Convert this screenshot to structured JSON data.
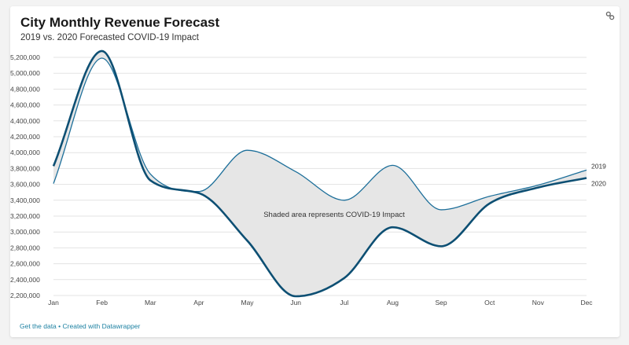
{
  "header": {
    "title": "City Monthly Revenue Forecast",
    "subtitle": "2019 vs. 2020 Forecasted COVID-19 Impact",
    "link_icon": "link-icon"
  },
  "footer": {
    "get_data": "Get the data",
    "separator": "•",
    "created_with": "Created with Datawrapper"
  },
  "colors": {
    "line_2019": "#1d6f9a",
    "line_2020": "#0d4f73",
    "shade": "#e6e6e6",
    "grid": "#e3e3e3"
  },
  "chart_data": {
    "type": "line",
    "title": "City Monthly Revenue Forecast",
    "subtitle": "2019 vs. 2020 Forecasted COVID-19 Impact",
    "categories": [
      "Jan",
      "Feb",
      "Mar",
      "Apr",
      "May",
      "Jun",
      "Jul",
      "Aug",
      "Sep",
      "Oct",
      "Nov",
      "Dec"
    ],
    "series": [
      {
        "name": "2019",
        "values": [
          3610000,
          5190000,
          3730000,
          3510000,
          4030000,
          3760000,
          3400000,
          3840000,
          3280000,
          3450000,
          3590000,
          3780000
        ]
      },
      {
        "name": "2020",
        "values": [
          3830000,
          5280000,
          3650000,
          3490000,
          2890000,
          2190000,
          2420000,
          3060000,
          2820000,
          3360000,
          3560000,
          3680000
        ]
      }
    ],
    "ylim": [
      2200000,
      5200000
    ],
    "yticks": [
      2200000,
      2400000,
      2600000,
      2800000,
      3000000,
      3200000,
      3400000,
      3600000,
      3800000,
      4000000,
      4200000,
      4400000,
      4600000,
      4800000,
      5000000,
      5200000
    ],
    "ytick_labels": [
      "2,200,000",
      "2,400,000",
      "2,600,000",
      "2,800,000",
      "3,000,000",
      "3,200,000",
      "3,400,000",
      "3,600,000",
      "3,800,000",
      "4,000,000",
      "4,200,000",
      "4,400,000",
      "4,600,000",
      "4,800,000",
      "5,000,000",
      "5,200,000"
    ],
    "annotation": "Shaded area represents COVID-19 Impact",
    "shaded_between_series": true,
    "grid": true,
    "legend": "direct labels at line ends"
  }
}
